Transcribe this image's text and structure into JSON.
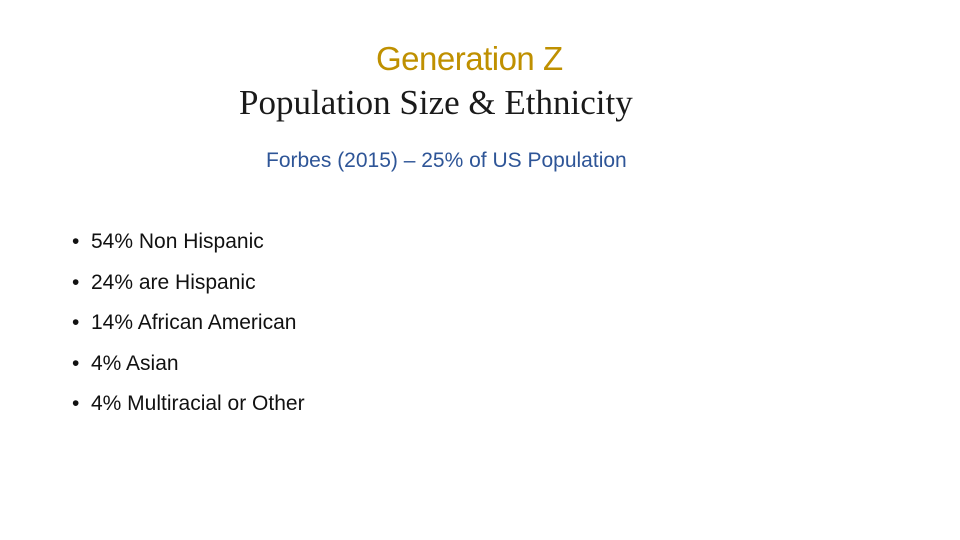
{
  "slide": {
    "title": "Generation Z",
    "subtitle": "Population Size & Ethnicity",
    "source": "Forbes (2015) – 25% of US Population",
    "bullet_glyph": "•",
    "bullets": [
      "54% Non Hispanic",
      "24% are Hispanic",
      "14% African American",
      "4% Asian",
      "4% Multiracial or Other"
    ]
  },
  "colors": {
    "title": "#BF9000",
    "source": "#2E5597",
    "body": "#111111"
  }
}
